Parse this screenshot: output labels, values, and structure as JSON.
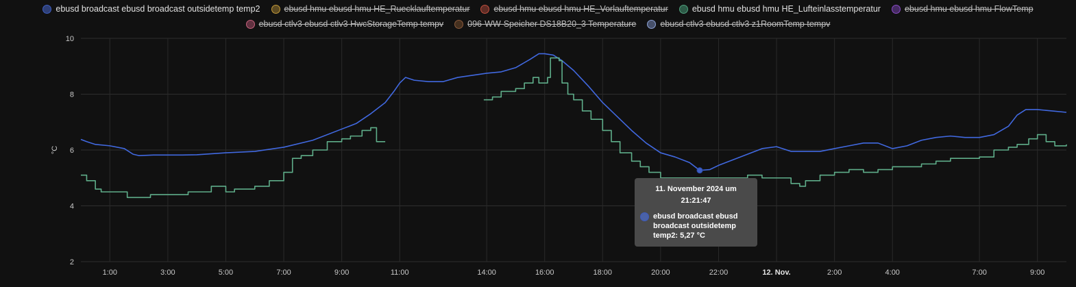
{
  "legend": {
    "row1": [
      {
        "label": "ebusd broadcast ebusd broadcast outsidetemp temp2",
        "color": "#3e5fc2",
        "fill": "#2e3f77",
        "hidden": false
      },
      {
        "label": "ebusd hmu ebusd hmu HE_Ruecklauftemperatur",
        "color": "#c39a3a",
        "fill": "#5c4a22",
        "hidden": true
      },
      {
        "label": "ebusd hmu ebusd hmu HE_Vorlauftemperatur",
        "color": "#c2503f",
        "fill": "#5e2c25",
        "hidden": true
      },
      {
        "label": "ebusd hmu ebusd hmu HE_Lufteinlasstemperatur",
        "color": "#4fa27e",
        "fill": "#2d5a47",
        "hidden": false
      },
      {
        "label": "ebusd hmu ebusd hmu FlowTemp",
        "color": "#8a4bc7",
        "fill": "#452a62",
        "hidden": true
      }
    ],
    "row2": [
      {
        "label": "ebusd ctlv3 ebusd ctlv3 HwcStorageTemp tempv",
        "color": "#c7637d",
        "fill": "#613140",
        "hidden": true
      },
      {
        "label": "096-WW-Speicher DS18B20_3 Temperature",
        "color": "#8a5a3c",
        "fill": "#45301f",
        "hidden": true
      },
      {
        "label": "ebusd ctlv3 ebusd ctlv3 z1RoomTemp tempv",
        "color": "#8ea3d6",
        "fill": "#46506a",
        "hidden": true
      }
    ]
  },
  "tooltip": {
    "title": "11. November 2024 um 21:21:47",
    "text": "ebusd broadcast ebusd broadcast outsidetemp temp2: 5,27 °C"
  },
  "chart_data": {
    "type": "line",
    "ylabel": "°C",
    "ylim": [
      2,
      10
    ],
    "yticks": [
      2,
      4,
      6,
      8,
      10
    ],
    "grid": true,
    "x_unit": "hours from 0:00 on 11 Nov",
    "xlim": [
      0.0,
      34.0
    ],
    "xticks": [
      {
        "x": 1,
        "label": "1:00",
        "bold": false
      },
      {
        "x": 3,
        "label": "3:00",
        "bold": false
      },
      {
        "x": 5,
        "label": "5:00",
        "bold": false
      },
      {
        "x": 7,
        "label": "7:00",
        "bold": false
      },
      {
        "x": 9,
        "label": "9:00",
        "bold": false
      },
      {
        "x": 11,
        "label": "11:00",
        "bold": false
      },
      {
        "x": 14,
        "label": "14:00",
        "bold": false
      },
      {
        "x": 16,
        "label": "16:00",
        "bold": false
      },
      {
        "x": 18,
        "label": "18:00",
        "bold": false
      },
      {
        "x": 20,
        "label": "20:00",
        "bold": false
      },
      {
        "x": 22,
        "label": "22:00",
        "bold": false
      },
      {
        "x": 24,
        "label": "12. Nov.",
        "bold": true
      },
      {
        "x": 26,
        "label": "2:00",
        "bold": false
      },
      {
        "x": 28,
        "label": "4:00",
        "bold": false
      },
      {
        "x": 31,
        "label": "7:00",
        "bold": false
      },
      {
        "x": 33,
        "label": "9:00",
        "bold": false
      }
    ],
    "series": [
      {
        "name": "ebusd broadcast ebusd broadcast outsidetemp temp2",
        "color": "#4169e1",
        "step": false,
        "points": [
          [
            0,
            6.38
          ],
          [
            0.2,
            6.3
          ],
          [
            0.5,
            6.2
          ],
          [
            1,
            6.15
          ],
          [
            1.5,
            6.05
          ],
          [
            1.8,
            5.85
          ],
          [
            2.0,
            5.8
          ],
          [
            2.5,
            5.82
          ],
          [
            3,
            5.82
          ],
          [
            3.5,
            5.82
          ],
          [
            4,
            5.83
          ],
          [
            5,
            5.9
          ],
          [
            6,
            5.95
          ],
          [
            7,
            6.1
          ],
          [
            8,
            6.35
          ],
          [
            9,
            6.75
          ],
          [
            9.5,
            6.95
          ],
          [
            10,
            7.3
          ],
          [
            10.5,
            7.7
          ],
          [
            10.8,
            8.1
          ],
          [
            11.0,
            8.4
          ],
          [
            11.2,
            8.6
          ],
          [
            11.5,
            8.5
          ],
          [
            12,
            8.45
          ],
          [
            12.5,
            8.45
          ],
          [
            13,
            8.6
          ],
          [
            14,
            8.75
          ],
          [
            14.5,
            8.8
          ],
          [
            15,
            8.95
          ],
          [
            15.5,
            9.25
          ],
          [
            15.8,
            9.45
          ],
          [
            16,
            9.45
          ],
          [
            16.3,
            9.4
          ],
          [
            16.6,
            9.2
          ],
          [
            17,
            8.85
          ],
          [
            17.5,
            8.3
          ],
          [
            18,
            7.7
          ],
          [
            18.5,
            7.2
          ],
          [
            19,
            6.7
          ],
          [
            19.5,
            6.25
          ],
          [
            20,
            5.9
          ],
          [
            20.5,
            5.75
          ],
          [
            21,
            5.55
          ],
          [
            21.35,
            5.27
          ],
          [
            21.7,
            5.3
          ],
          [
            22,
            5.45
          ],
          [
            22.5,
            5.65
          ],
          [
            23,
            5.85
          ],
          [
            23.5,
            6.05
          ],
          [
            24,
            6.12
          ],
          [
            24.5,
            5.95
          ],
          [
            25,
            5.95
          ],
          [
            25.5,
            5.95
          ],
          [
            26,
            6.05
          ],
          [
            26.5,
            6.15
          ],
          [
            27,
            6.25
          ],
          [
            27.5,
            6.25
          ],
          [
            28,
            6.05
          ],
          [
            28.5,
            6.15
          ],
          [
            29,
            6.35
          ],
          [
            29.5,
            6.45
          ],
          [
            30,
            6.5
          ],
          [
            30.5,
            6.45
          ],
          [
            31,
            6.45
          ],
          [
            31.5,
            6.55
          ],
          [
            32,
            6.85
          ],
          [
            32.3,
            7.25
          ],
          [
            32.6,
            7.45
          ],
          [
            33,
            7.45
          ],
          [
            33.5,
            7.4
          ],
          [
            34,
            7.35
          ]
        ]
      },
      {
        "name": "ebusd hmu ebusd hmu HE_Lufteinlasstemperatur",
        "color": "#5fae8a",
        "step": true,
        "segments": [
          [
            [
              0,
              5.1
            ],
            [
              0.2,
              4.9
            ],
            [
              0.5,
              4.6
            ],
            [
              0.7,
              4.5
            ],
            [
              1,
              4.5
            ],
            [
              1.6,
              4.3
            ],
            [
              2.4,
              4.4
            ],
            [
              3,
              4.4
            ],
            [
              3.7,
              4.5
            ],
            [
              4.5,
              4.7
            ],
            [
              5,
              4.5
            ],
            [
              5.3,
              4.6
            ],
            [
              6,
              4.7
            ],
            [
              6.5,
              4.9
            ],
            [
              7,
              5.2
            ],
            [
              7.3,
              5.7
            ],
            [
              7.6,
              5.8
            ],
            [
              8,
              6.0
            ],
            [
              8.5,
              6.3
            ],
            [
              9,
              6.4
            ],
            [
              9.3,
              6.5
            ],
            [
              9.7,
              6.7
            ],
            [
              10,
              6.8
            ],
            [
              10.2,
              6.3
            ],
            [
              10.5,
              6.3
            ]
          ],
          [
            [
              13.9,
              7.8
            ],
            [
              14.2,
              7.9
            ],
            [
              14.5,
              8.1
            ],
            [
              15,
              8.2
            ],
            [
              15.3,
              8.4
            ],
            [
              15.6,
              8.6
            ],
            [
              15.8,
              8.4
            ],
            [
              16.1,
              8.6
            ],
            [
              16.2,
              9.3
            ],
            [
              16.5,
              9.2
            ],
            [
              16.6,
              8.4
            ],
            [
              16.8,
              8.0
            ],
            [
              17,
              7.8
            ],
            [
              17.3,
              7.4
            ],
            [
              17.6,
              7.1
            ],
            [
              18,
              6.7
            ],
            [
              18.3,
              6.3
            ],
            [
              18.6,
              5.9
            ],
            [
              19,
              5.6
            ],
            [
              19.3,
              5.4
            ],
            [
              19.6,
              5.2
            ],
            [
              20,
              5.0
            ],
            [
              22,
              5.0
            ],
            [
              23,
              5.1
            ],
            [
              23.5,
              5.0
            ],
            [
              24,
              5.0
            ],
            [
              24.5,
              4.8
            ],
            [
              24.8,
              4.7
            ],
            [
              25,
              4.9
            ],
            [
              25.5,
              5.1
            ],
            [
              26,
              5.2
            ],
            [
              26.5,
              5.3
            ],
            [
              27,
              5.2
            ],
            [
              27.5,
              5.3
            ],
            [
              28,
              5.4
            ],
            [
              28.5,
              5.4
            ],
            [
              29,
              5.5
            ],
            [
              29.5,
              5.6
            ],
            [
              30,
              5.7
            ],
            [
              31,
              5.75
            ],
            [
              31.5,
              6.0
            ],
            [
              32,
              6.1
            ],
            [
              32.3,
              6.2
            ],
            [
              32.7,
              6.4
            ],
            [
              33,
              6.55
            ],
            [
              33.3,
              6.3
            ],
            [
              33.6,
              6.15
            ],
            [
              34,
              6.2
            ]
          ]
        ]
      }
    ],
    "highlight": {
      "x": 21.35,
      "y": 5.27
    }
  }
}
